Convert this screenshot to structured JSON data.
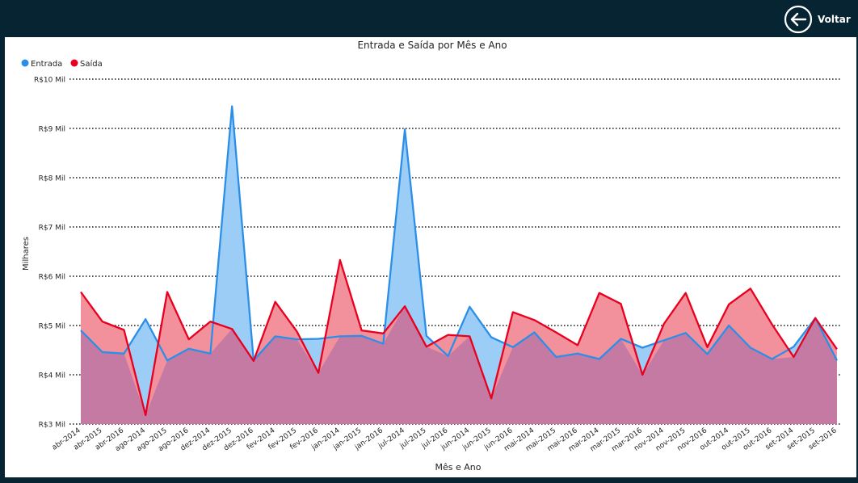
{
  "nav": {
    "back_label": "Voltar"
  },
  "colors": {
    "background": "#072433",
    "entrada_line": "#2b8fe8",
    "entrada_fill": "#9ccdf7",
    "saida_line": "#e8001f",
    "saida_fill": "#f2909c",
    "overlap_fill": "#c57aa4"
  },
  "chart_data": {
    "type": "area",
    "title": "Entrada e Saída por Mês e Ano",
    "xlabel": "Mês e Ano",
    "ylabel": "Milhares",
    "ylim": [
      3,
      10
    ],
    "yticks": [
      "R$3 Mil",
      "R$4 Mil",
      "R$5 Mil",
      "R$6 Mil",
      "R$7 Mil",
      "R$8 Mil",
      "R$9 Mil",
      "R$10 Mil"
    ],
    "grid": true,
    "legend_position": "top-left",
    "categories": [
      "abr-2014",
      "abr-2015",
      "abr-2016",
      "ago-2014",
      "ago-2015",
      "ago-2016",
      "dez-2014",
      "dez-2015",
      "dez-2016",
      "fev-2014",
      "fev-2015",
      "fev-2016",
      "jan-2014",
      "jan-2015",
      "jan-2016",
      "jul-2014",
      "jul-2015",
      "jul-2016",
      "jun-2014",
      "jun-2015",
      "jun-2016",
      "mai-2014",
      "mai-2015",
      "mai-2016",
      "mar-2014",
      "mar-2015",
      "mar-2016",
      "nov-2014",
      "nov-2015",
      "nov-2016",
      "out-2014",
      "out-2015",
      "out-2016",
      "set-2014",
      "set-2015",
      "set-2016"
    ],
    "series": [
      {
        "name": "Entrada",
        "values": [
          4.9,
          4.46,
          4.43,
          5.13,
          4.29,
          4.53,
          4.43,
          9.45,
          4.29,
          4.78,
          4.72,
          4.73,
          4.78,
          4.79,
          4.63,
          8.98,
          4.79,
          4.38,
          5.38,
          4.76,
          4.56,
          4.86,
          4.36,
          4.43,
          4.32,
          4.73,
          4.55,
          4.7,
          4.85,
          4.42,
          5.0,
          4.55,
          4.32,
          4.57,
          5.15,
          4.29
        ]
      },
      {
        "name": "Saída",
        "values": [
          5.68,
          5.08,
          4.91,
          3.18,
          5.68,
          4.72,
          5.08,
          4.93,
          4.28,
          5.48,
          4.88,
          4.04,
          6.33,
          4.9,
          4.84,
          5.39,
          4.57,
          4.81,
          4.78,
          3.52,
          5.27,
          5.11,
          4.86,
          4.6,
          5.66,
          5.44,
          4.0,
          5.04,
          5.66,
          4.56,
          5.43,
          5.75,
          5.02,
          4.36,
          5.15,
          4.52
        ]
      }
    ]
  }
}
